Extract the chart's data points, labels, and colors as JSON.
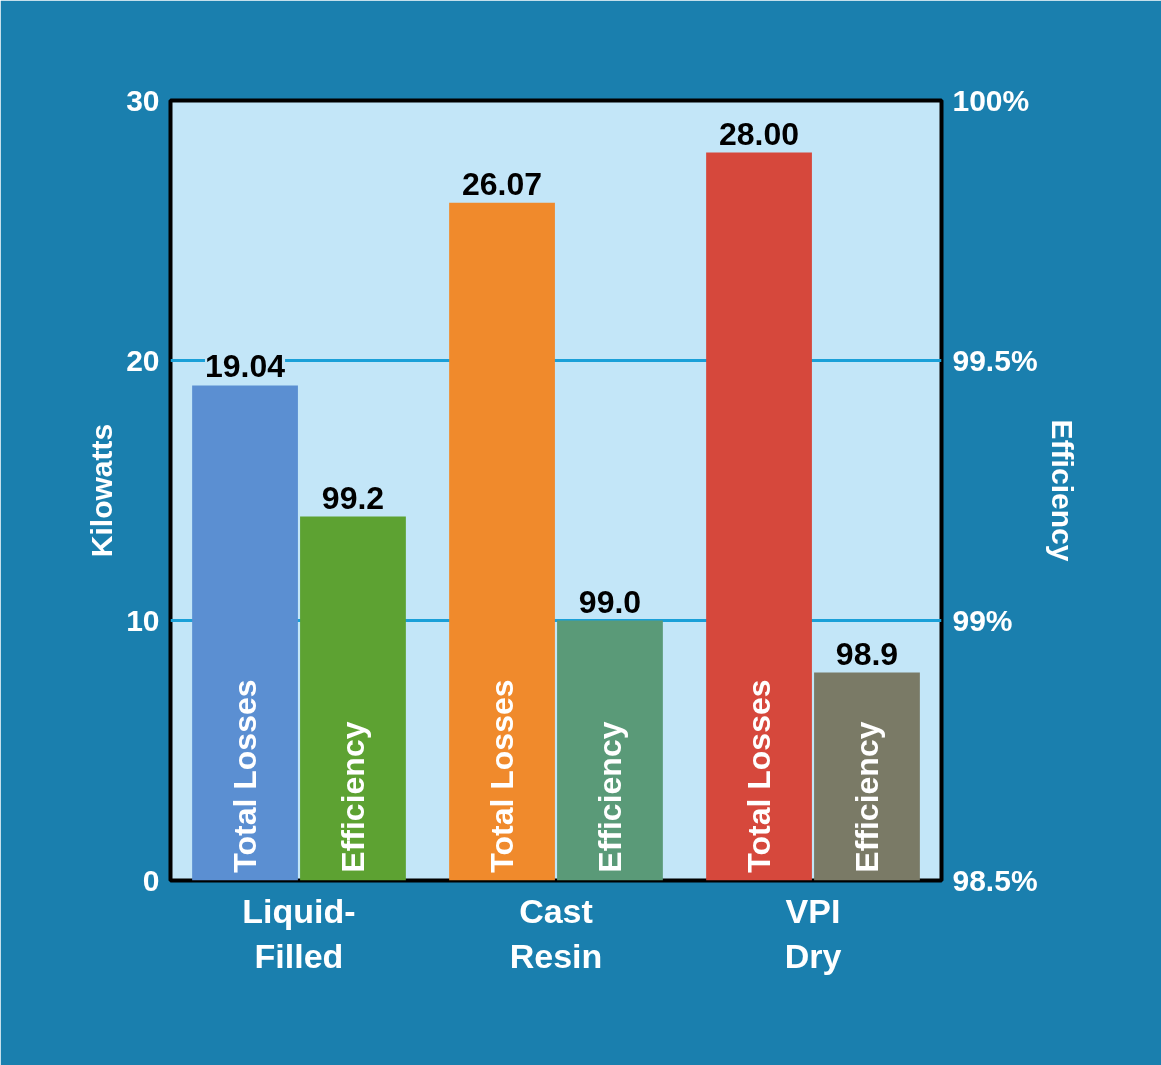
{
  "chart_data": {
    "type": "bar",
    "categories": [
      "Liquid-\nFilled",
      "Cast\nResin",
      "VPI\nDry"
    ],
    "ylabel": "Kilowatts",
    "y2label": "Efficiency",
    "ylim": [
      0,
      30
    ],
    "yticks": [
      0,
      10,
      20,
      30
    ],
    "y2lim": [
      98.5,
      100
    ],
    "y2ticks": [
      {
        "value": 98.5,
        "label": "98.5%"
      },
      {
        "value": 99,
        "label": "99%"
      },
      {
        "value": 99.5,
        "label": "99.5%"
      },
      {
        "value": 100,
        "label": "100%"
      }
    ],
    "grid": "y",
    "series": [
      {
        "name": "Total Losses",
        "colors": [
          "#5b8fd2",
          "#f08a2c",
          "#d6483c"
        ],
        "values": [
          19.04,
          26.07,
          28.0
        ],
        "value_labels": [
          "19.04",
          "26.07",
          "28.00"
        ]
      },
      {
        "name": "Efficiency",
        "axis": "y2",
        "colors": [
          "#5da232",
          "#5a9a78",
          "#7a7a66"
        ],
        "values": [
          99.2,
          99.0,
          98.9
        ],
        "value_labels": [
          "99.2",
          "99.0",
          "98.9"
        ]
      }
    ]
  }
}
